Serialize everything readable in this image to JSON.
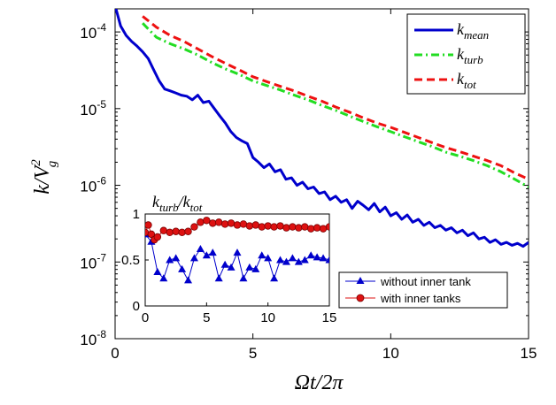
{
  "chart_data": [
    {
      "type": "line",
      "xlabel": "Ωt/2π",
      "ylabel": "k/V_g^2",
      "ylabel_main": "k/V",
      "ylabel_sub": "g",
      "ylabel_sup": "2",
      "xlim": [
        0,
        15
      ],
      "ylim": [
        1e-08,
        0.0002
      ],
      "yscale": "log",
      "xticks": [
        "0",
        "5",
        "10",
        "15"
      ],
      "yticks": [
        "10",
        "10",
        "10",
        "10",
        "10"
      ],
      "ytick_exponents": [
        "-8",
        "-7",
        "-6",
        "-5",
        "-4"
      ],
      "legend_position": "top-right",
      "series": [
        {
          "name": "k_mean",
          "label_main": "k",
          "label_sub": "mean",
          "color": "#0000cc",
          "style": "solid",
          "x": [
            0.0,
            0.2,
            0.4,
            0.6,
            0.8,
            1.0,
            1.2,
            1.4,
            1.6,
            1.8,
            2.0,
            2.2,
            2.4,
            2.6,
            2.8,
            3.0,
            3.2,
            3.4,
            3.6,
            3.8,
            4.0,
            4.2,
            4.4,
            4.6,
            4.8,
            5.0,
            5.2,
            5.4,
            5.6,
            5.8,
            6.0,
            6.2,
            6.4,
            6.6,
            6.8,
            7.0,
            7.2,
            7.4,
            7.6,
            7.8,
            8.0,
            8.2,
            8.4,
            8.6,
            8.8,
            9.0,
            9.2,
            9.4,
            9.6,
            9.8,
            10.0,
            10.2,
            10.4,
            10.6,
            10.8,
            11.0,
            11.2,
            11.4,
            11.6,
            11.8,
            12.0,
            12.2,
            12.4,
            12.6,
            12.8,
            13.0,
            13.2,
            13.4,
            13.6,
            13.8,
            14.0,
            14.2,
            14.4,
            14.6,
            14.8,
            15.0
          ],
          "values": [
            0.00022,
            0.00012,
            9e-05,
            7.5e-05,
            6.5e-05,
            5.5e-05,
            4.5e-05,
            3.2e-05,
            2.3e-05,
            1.8e-05,
            1.7e-05,
            1.6e-05,
            1.5e-05,
            1.45e-05,
            1.3e-05,
            1.5e-05,
            1.2e-05,
            1.25e-05,
            1e-05,
            8e-06,
            6.5e-06,
            5e-06,
            4.2e-06,
            3.8e-06,
            3.5e-06,
            2.3e-06,
            2e-06,
            1.7e-06,
            1.9e-06,
            1.5e-06,
            1.6e-06,
            1.2e-06,
            1.25e-06,
            1e-06,
            1.1e-06,
            9e-07,
            9.5e-07,
            7.8e-07,
            8.2e-07,
            6.5e-07,
            7.2e-07,
            6e-07,
            6.5e-07,
            5e-07,
            6.2e-07,
            5.5e-07,
            4.8e-07,
            5.8e-07,
            4.5e-07,
            5.2e-07,
            4e-07,
            4.4e-07,
            3.6e-07,
            4.1e-07,
            3.3e-07,
            3.6e-07,
            3e-07,
            3.3e-07,
            2.8e-07,
            3e-07,
            2.6e-07,
            2.8e-07,
            2.4e-07,
            2.6e-07,
            2.2e-07,
            2.4e-07,
            2e-07,
            2.1e-07,
            1.8e-07,
            1.95e-07,
            1.7e-07,
            1.8e-07,
            1.65e-07,
            1.75e-07,
            1.6e-07,
            1.8e-07
          ]
        },
        {
          "name": "k_turb",
          "label_main": "k",
          "label_sub": "turb",
          "color": "#22dd22",
          "style": "dashdot",
          "x": [
            1.0,
            1.5,
            2.0,
            2.5,
            3.0,
            3.5,
            4.0,
            4.5,
            5.0,
            5.5,
            6.0,
            6.5,
            7.0,
            7.5,
            8.0,
            8.5,
            9.0,
            9.5,
            10.0,
            10.5,
            11.0,
            11.5,
            12.0,
            12.5,
            13.0,
            13.5,
            14.0,
            14.5,
            15.0
          ],
          "values": [
            0.00013,
            8.5e-05,
            7e-05,
            6e-05,
            5e-05,
            4e-05,
            3.3e-05,
            2.8e-05,
            2.3e-05,
            2e-05,
            1.75e-05,
            1.5e-05,
            1.3e-05,
            1.1e-05,
            9.5e-06,
            8e-06,
            6.8e-06,
            5.8e-06,
            5e-06,
            4.3e-06,
            3.7e-06,
            3.2e-06,
            2.7e-06,
            2.4e-06,
            2.1e-06,
            1.8e-06,
            1.5e-06,
            1.2e-06,
            9.5e-07
          ]
        },
        {
          "name": "k_tot",
          "label_main": "k",
          "label_sub": "tot",
          "color": "#ee1111",
          "style": "dashed",
          "x": [
            1.0,
            1.5,
            2.0,
            2.5,
            3.0,
            3.5,
            4.0,
            4.5,
            5.0,
            5.5,
            6.0,
            6.5,
            7.0,
            7.5,
            8.0,
            8.5,
            9.0,
            9.5,
            10.0,
            10.5,
            11.0,
            11.5,
            12.0,
            12.5,
            13.0,
            13.5,
            14.0,
            14.5,
            15.0
          ],
          "values": [
            0.00016,
            0.000115,
            9e-05,
            7.5e-05,
            6e-05,
            4.8e-05,
            3.9e-05,
            3.2e-05,
            2.6e-05,
            2.25e-05,
            1.95e-05,
            1.7e-05,
            1.45e-05,
            1.25e-05,
            1.05e-05,
            9e-06,
            7.6e-06,
            6.5e-06,
            5.7e-06,
            4.9e-06,
            4.2e-06,
            3.6e-06,
            3.1e-06,
            2.75e-06,
            2.4e-06,
            2.1e-06,
            1.8e-06,
            1.45e-06,
            1.2e-06
          ]
        }
      ]
    },
    {
      "type": "line",
      "title": "k_turb/k_tot",
      "title_parts": [
        "k",
        "turb",
        "/k",
        "tot"
      ],
      "xlim": [
        0,
        15
      ],
      "ylim": [
        0,
        1
      ],
      "xticks": [
        "0",
        "5",
        "10",
        "15"
      ],
      "yticks": [
        "0",
        "0.5",
        "1"
      ],
      "legend_position": "bottom-right",
      "series": [
        {
          "name": "without inner tank",
          "color": "#0000cc",
          "marker": "triangle",
          "x": [
            0,
            0.5,
            1,
            1.5,
            2,
            2.5,
            3,
            3.5,
            4,
            4.5,
            5,
            5.5,
            6,
            6.5,
            7,
            7.5,
            8,
            8.5,
            9,
            9.5,
            10,
            10.5,
            11,
            11.5,
            12,
            12.5,
            13,
            13.5,
            14,
            14.5,
            15
          ],
          "values": [
            0.78,
            0.7,
            0.37,
            0.3,
            0.5,
            0.52,
            0.4,
            0.28,
            0.52,
            0.62,
            0.55,
            0.58,
            0.3,
            0.45,
            0.42,
            0.58,
            0.3,
            0.42,
            0.4,
            0.55,
            0.52,
            0.3,
            0.5,
            0.48,
            0.52,
            0.48,
            0.5,
            0.55,
            0.53,
            0.52,
            0.5
          ]
        },
        {
          "name": "with inner tanks",
          "color": "#dd1111",
          "marker": "circle",
          "x": [
            0,
            0.25,
            0.5,
            0.75,
            1,
            1.5,
            2,
            2.5,
            3,
            3.5,
            4,
            4.5,
            5,
            5.5,
            6,
            6.5,
            7,
            7.5,
            8,
            8.5,
            9,
            9.5,
            10,
            10.5,
            11,
            11.5,
            12,
            12.5,
            13,
            13.5,
            14,
            14.5,
            15
          ],
          "values": [
            0.8,
            0.88,
            0.78,
            0.72,
            0.75,
            0.82,
            0.8,
            0.81,
            0.8,
            0.81,
            0.86,
            0.91,
            0.93,
            0.9,
            0.91,
            0.89,
            0.9,
            0.88,
            0.89,
            0.87,
            0.88,
            0.86,
            0.87,
            0.86,
            0.87,
            0.85,
            0.86,
            0.85,
            0.86,
            0.84,
            0.85,
            0.84,
            0.86
          ]
        }
      ]
    }
  ]
}
